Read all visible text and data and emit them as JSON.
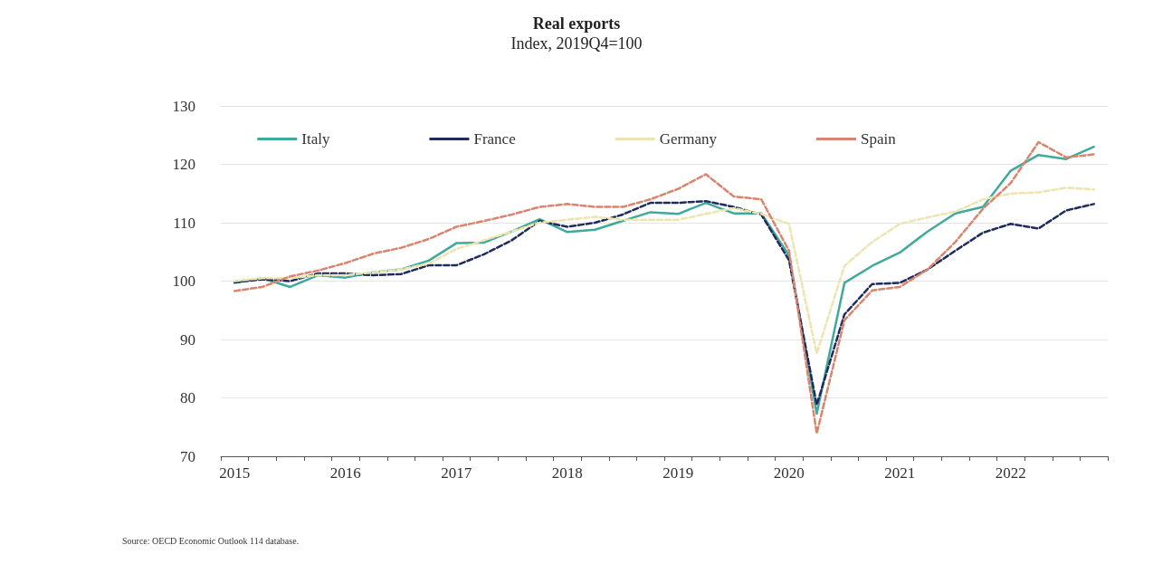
{
  "chart_data": {
    "type": "line",
    "title": "Real exports",
    "subtitle": "Index, 2019Q4=100",
    "categories": [
      "2015",
      null,
      null,
      null,
      "2016",
      null,
      null,
      null,
      "2017",
      null,
      null,
      null,
      "2018",
      null,
      null,
      null,
      "2019",
      null,
      null,
      null,
      "2020",
      null,
      null,
      null,
      "2021",
      null,
      null,
      null,
      "2022",
      null,
      null,
      null
    ],
    "series": [
      {
        "name": "Italy",
        "color": "#3fa99b",
        "line_style": "solid",
        "values": [
          99.7,
          100.5,
          99,
          101,
          100.6,
          101.5,
          102,
          103.5,
          106.5,
          106.6,
          108.5,
          110.6,
          108.4,
          108.8,
          110.3,
          111.8,
          111.5,
          113.4,
          111.6,
          111.6,
          104.4,
          77.3,
          99.7,
          102.6,
          104.9,
          108.5,
          111.6,
          112.7,
          118.9,
          121.6,
          120.9,
          123
        ]
      },
      {
        "name": "France",
        "color": "#1f2a5e",
        "line_style": "dashed",
        "values": [
          99.8,
          100.3,
          100,
          101.3,
          101.3,
          101,
          101.2,
          102.7,
          102.7,
          104.6,
          107,
          110.3,
          109.3,
          110,
          111.4,
          113.4,
          113.4,
          113.7,
          112.7,
          111.4,
          103.6,
          78.8,
          94.3,
          99.5,
          99.7,
          102,
          105.2,
          108.3,
          109.8,
          109,
          112.1,
          113.2
        ]
      },
      {
        "name": "Germany",
        "color": "#ede5b0",
        "line_style": "dashed",
        "values": [
          100,
          100.5,
          100.5,
          101,
          101,
          101.5,
          102,
          103,
          105.5,
          107,
          108.5,
          110,
          110.5,
          111,
          110.5,
          110.5,
          110.5,
          111.5,
          112.5,
          111.5,
          109.8,
          87.6,
          102.6,
          106.7,
          109.8,
          110.9,
          111.9,
          114,
          115,
          115.2,
          116,
          115.7
        ]
      },
      {
        "name": "Spain",
        "color": "#d9846c",
        "line_style": "dashed",
        "values": [
          98.3,
          99,
          100.8,
          101.8,
          103.1,
          104.7,
          105.7,
          107.2,
          109.3,
          110.3,
          111.4,
          112.7,
          113.2,
          112.7,
          112.7,
          114,
          115.8,
          118.3,
          114.5,
          114,
          105.2,
          73.9,
          93.3,
          98.4,
          99,
          102,
          106.7,
          112.4,
          116.8,
          123.8,
          121.2,
          121.7
        ]
      }
    ],
    "ylim": [
      70,
      130
    ],
    "yticks": [
      70,
      80,
      90,
      100,
      110,
      120,
      130
    ],
    "grid": "y",
    "legend": "top",
    "marker": "none",
    "annotations": [
      "Source: OECD Economic Outlook 114 database."
    ]
  }
}
